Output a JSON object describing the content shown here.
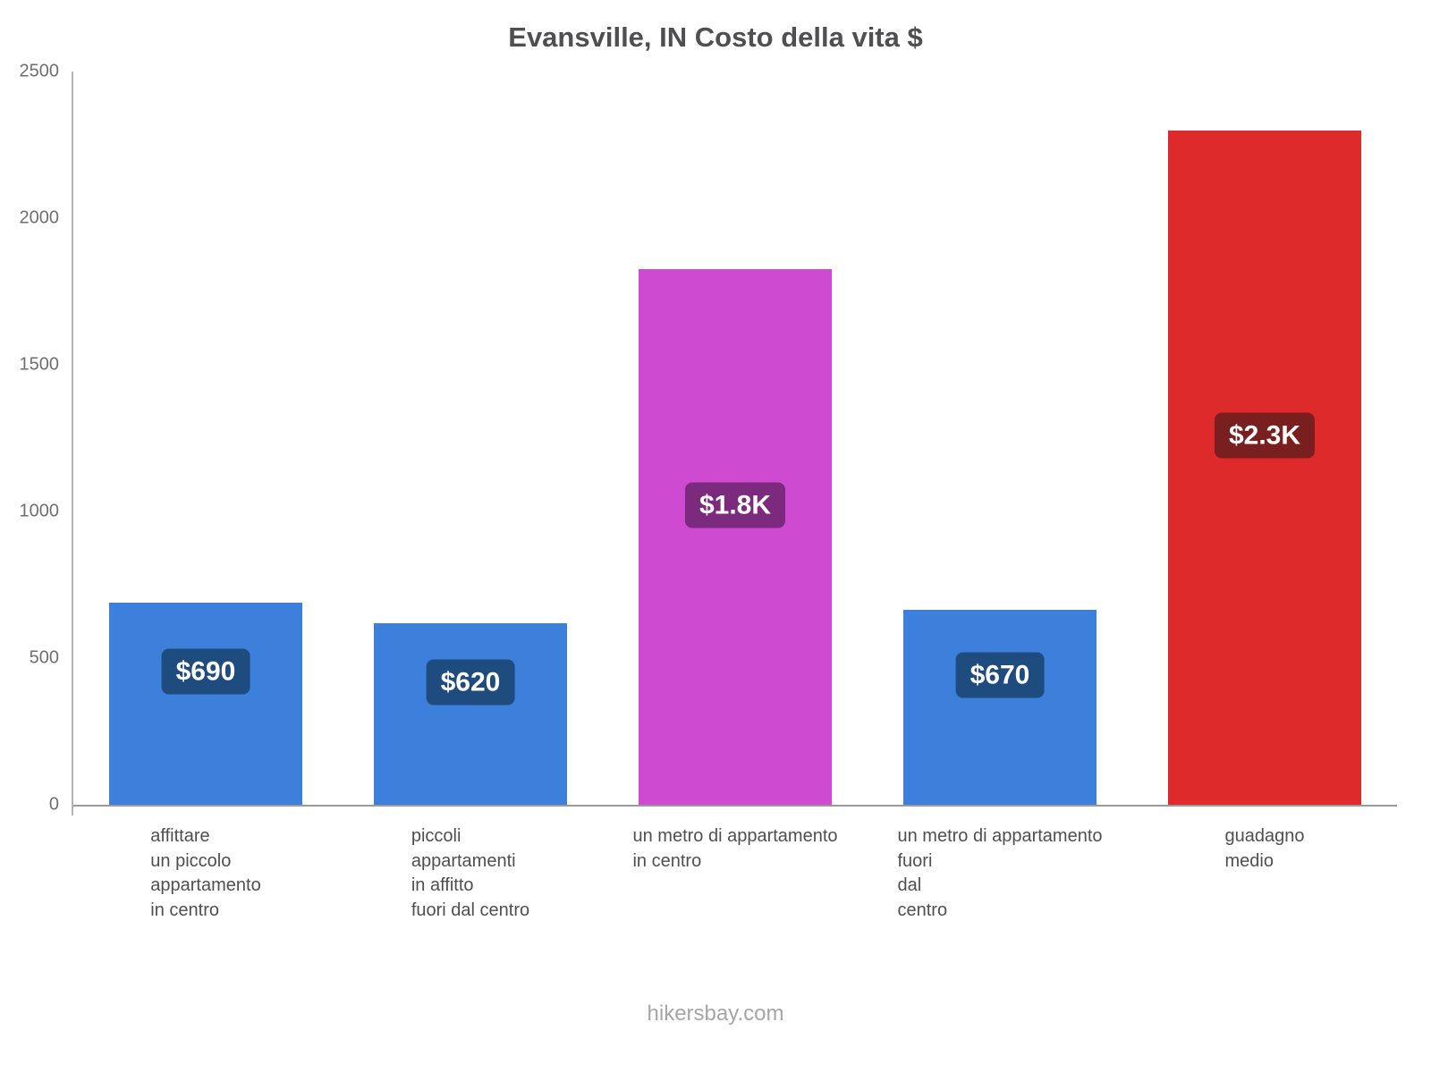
{
  "title": "Evansville, IN Costo della vita $",
  "footer": "hikersbay.com",
  "chart_data": {
    "type": "bar",
    "title": "Evansville, IN Costo della vita $",
    "ylabel": "",
    "xlabel": "",
    "ylim": [
      0,
      2500
    ],
    "yticks": [
      0,
      500,
      1000,
      1500,
      2000,
      2500
    ],
    "grid": false,
    "legend": "none",
    "bars": [
      {
        "category": "affittare\nun piccolo\nappartamento\nin centro",
        "value": 690,
        "value_label": "$690",
        "bar_color": "#3c80dc",
        "badge_color": "#1f4c7e"
      },
      {
        "category": "piccoli\nappartamenti\nin affitto\nfuori dal centro",
        "value": 620,
        "value_label": "$620",
        "bar_color": "#3c80dc",
        "badge_color": "#1f4c7e"
      },
      {
        "category": "un metro di appartamento\nin centro",
        "value": 1825,
        "value_label": "$1.8K",
        "bar_color": "#ce4ad0",
        "badge_color": "#7b2a7e"
      },
      {
        "category": "un metro di appartamento\nfuori\ndal\ncentro",
        "value": 665,
        "value_label": "$670",
        "bar_color": "#3c80dc",
        "badge_color": "#1f4c7e"
      },
      {
        "category": "guadagno\nmedio",
        "value": 2300,
        "value_label": "$2.3K",
        "bar_color": "#de2a2a",
        "badge_color": "#7a1f1f"
      }
    ]
  }
}
